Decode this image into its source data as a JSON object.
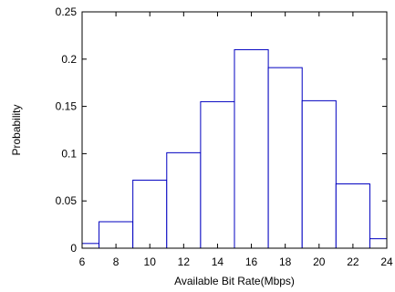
{
  "chart_data": {
    "type": "bar",
    "xlabel": "Available Bit Rate(Mbps)",
    "ylabel": "Probability",
    "xlim": [
      6,
      24
    ],
    "ylim": [
      0,
      0.25
    ],
    "xticks": [
      "6",
      "8",
      "10",
      "12",
      "14",
      "16",
      "18",
      "20",
      "22",
      "24"
    ],
    "yticks": [
      "0",
      "0.05",
      "0.1",
      "0.15",
      "0.2",
      "0.25"
    ],
    "bins": [
      {
        "x0": 6,
        "x1": 7,
        "value": 0.005
      },
      {
        "x0": 7,
        "x1": 9,
        "value": 0.028
      },
      {
        "x0": 9,
        "x1": 11,
        "value": 0.072
      },
      {
        "x0": 11,
        "x1": 13,
        "value": 0.101
      },
      {
        "x0": 13,
        "x1": 15,
        "value": 0.155
      },
      {
        "x0": 15,
        "x1": 17,
        "value": 0.21
      },
      {
        "x0": 17,
        "x1": 19,
        "value": 0.191
      },
      {
        "x0": 19,
        "x1": 21,
        "value": 0.156
      },
      {
        "x0": 21,
        "x1": 23,
        "value": 0.068
      },
      {
        "x0": 23,
        "x1": 24,
        "value": 0.01
      }
    ],
    "bar_color": "#0000c0",
    "bar_fill": "#ffffff",
    "grid": false
  }
}
